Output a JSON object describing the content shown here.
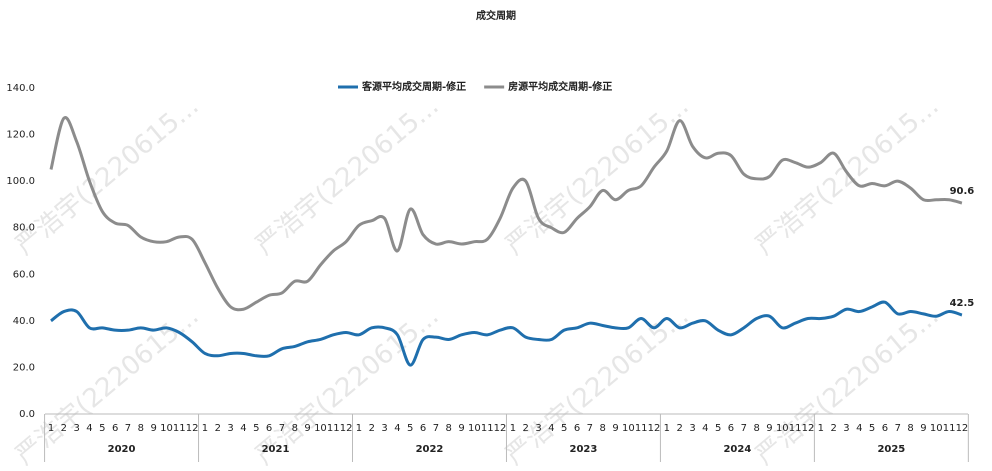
{
  "chart_data": {
    "type": "line",
    "title": "成交周期",
    "watermark": "严浩宇(2220615...",
    "categories": [
      "1",
      "2",
      "3",
      "4",
      "5",
      "6",
      "7",
      "8",
      "9",
      "10",
      "11",
      "12",
      "1",
      "2",
      "3",
      "4",
      "5",
      "6",
      "7",
      "8",
      "9",
      "10",
      "11",
      "12",
      "1",
      "2",
      "3",
      "4",
      "5",
      "6",
      "7",
      "8",
      "9",
      "10",
      "11",
      "12",
      "1",
      "2",
      "3",
      "4",
      "5",
      "6",
      "7",
      "8",
      "9",
      "10",
      "11",
      "12",
      "1",
      "2",
      "3",
      "4",
      "5",
      "6",
      "7",
      "8",
      "9",
      "10",
      "11",
      "12",
      "1",
      "2",
      "3",
      "4",
      "5",
      "6",
      "7",
      "8",
      "9",
      "10",
      "11",
      "12"
    ],
    "year_groups": [
      "2020",
      "2021",
      "2022",
      "2023",
      "2024",
      "2025"
    ],
    "series": [
      {
        "name": "客源平均成交周期-修正",
        "color": "#1f6fad",
        "values": [
          40,
          44,
          44,
          37,
          37,
          36,
          36,
          37,
          36,
          37,
          35,
          31,
          26,
          25,
          26,
          26,
          25,
          25,
          28,
          29,
          31,
          32,
          34,
          35,
          34,
          37,
          37,
          34,
          21,
          32,
          33,
          32,
          34,
          35,
          34,
          36,
          37,
          33,
          32,
          32,
          36,
          37,
          39,
          38,
          37,
          37,
          41,
          37,
          41,
          37,
          39,
          40,
          36,
          34,
          37,
          41,
          42,
          37,
          39,
          41,
          41,
          42,
          45,
          44,
          46,
          48,
          43,
          44,
          43,
          42,
          44,
          42.5
        ]
      },
      {
        "name": "房源平均成交周期-修正",
        "color": "#8c8c8c",
        "values": [
          105,
          127,
          117,
          100,
          87,
          82,
          81,
          76,
          74,
          74,
          76,
          75,
          65,
          54,
          46,
          45,
          48,
          51,
          52,
          57,
          57,
          64,
          70,
          74,
          81,
          83,
          84,
          70,
          88,
          77,
          73,
          74,
          73,
          74,
          75,
          84,
          97,
          100,
          84,
          80,
          78,
          84,
          89,
          96,
          92,
          96,
          98,
          106,
          113,
          126,
          115,
          110,
          112,
          111,
          103,
          101,
          102,
          109,
          108,
          106,
          108,
          112,
          104,
          98,
          99,
          98,
          100,
          97,
          92,
          92,
          92,
          90.6
        ]
      }
    ],
    "ylim": [
      0,
      140
    ],
    "yticks": [
      {
        "value": 0,
        "label": "0.0"
      },
      {
        "value": 20,
        "label": "20.0"
      },
      {
        "value": 40,
        "label": "40.0"
      },
      {
        "value": 60,
        "label": "60.0"
      },
      {
        "value": 80,
        "label": "80.0"
      },
      {
        "value": 100,
        "label": "100.0"
      },
      {
        "value": 120,
        "label": "120.0"
      },
      {
        "value": 140,
        "label": "140.0"
      }
    ],
    "legend": "top"
  }
}
